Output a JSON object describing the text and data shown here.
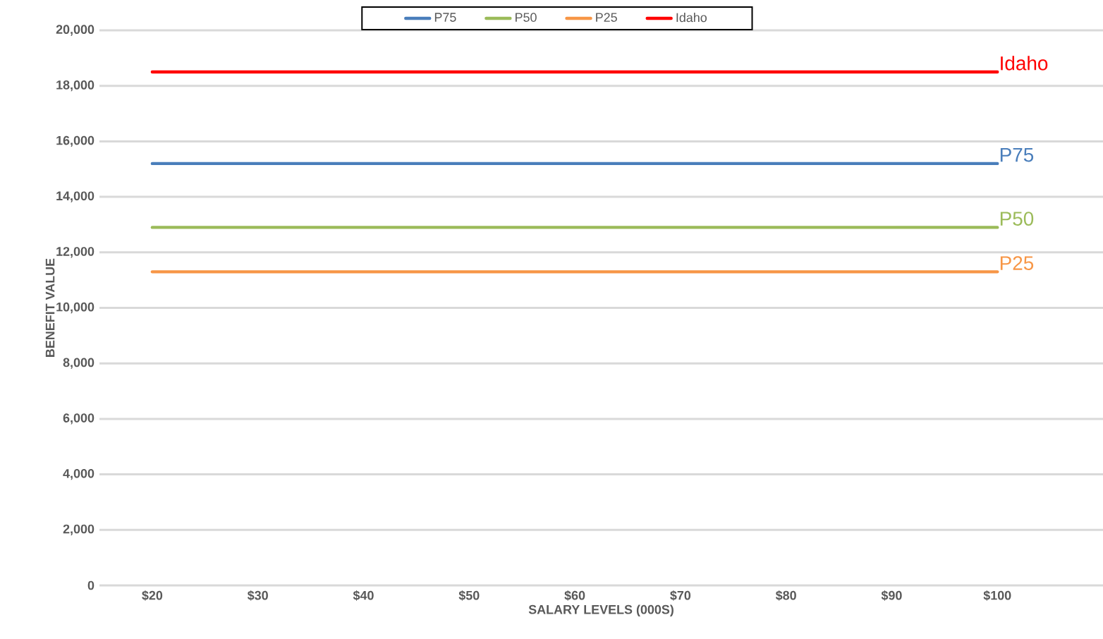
{
  "chart_data": {
    "type": "line",
    "xlabel": "SALARY LEVELS (000S)",
    "ylabel": "BENEFIT VALUE",
    "categories": [
      "$20",
      "$30",
      "$40",
      "$50",
      "$60",
      "$70",
      "$80",
      "$90",
      "$100"
    ],
    "series": [
      {
        "name": "P75",
        "color": "#4a7ebb",
        "values": [
          15200,
          15200,
          15200,
          15200,
          15200,
          15200,
          15200,
          15200,
          15200
        ]
      },
      {
        "name": "P50",
        "color": "#9bbb59",
        "values": [
          12900,
          12900,
          12900,
          12900,
          12900,
          12900,
          12900,
          12900,
          12900
        ]
      },
      {
        "name": "P25",
        "color": "#f79646",
        "values": [
          11300,
          11300,
          11300,
          11300,
          11300,
          11300,
          11300,
          11300,
          11300
        ]
      },
      {
        "name": "Idaho",
        "color": "#ff0000",
        "values": [
          18500,
          18500,
          18500,
          18500,
          18500,
          18500,
          18500,
          18500,
          18500
        ]
      }
    ],
    "ylim": [
      0,
      20000
    ],
    "yticks": [
      {
        "value": 0,
        "label": "0"
      },
      {
        "value": 2000,
        "label": "2,000"
      },
      {
        "value": 4000,
        "label": "4,000"
      },
      {
        "value": 6000,
        "label": "6,000"
      },
      {
        "value": 8000,
        "label": "8,000"
      },
      {
        "value": 10000,
        "label": "10,000"
      },
      {
        "value": 12000,
        "label": "12,000"
      },
      {
        "value": 14000,
        "label": "14,000"
      },
      {
        "value": 16000,
        "label": "16,000"
      },
      {
        "value": 18000,
        "label": "18,000"
      },
      {
        "value": 20000,
        "label": "20,000"
      }
    ],
    "grid": "y",
    "legend": "top",
    "marker": "none",
    "line_style": "solid"
  }
}
